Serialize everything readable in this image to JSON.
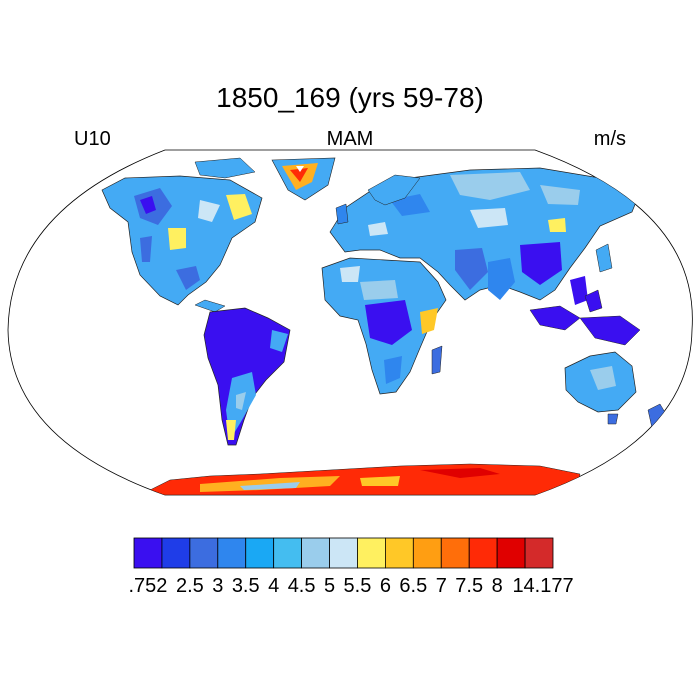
{
  "title": "1850_169 (yrs 59-78)",
  "variable": "U10",
  "season": "MAM",
  "units": "m/s",
  "colorbar": {
    "labels": [
      ".752",
      "2.5",
      "3",
      "3.5",
      "4",
      "4.5",
      "5",
      "5.5",
      "6",
      "6.5",
      "7",
      "7.5",
      "8",
      "14.177"
    ],
    "colors": [
      "#3a0ff0",
      "#1f3de8",
      "#3c6de0",
      "#2f86ee",
      "#1aa8f4",
      "#44bdf0",
      "#9acdec",
      "#cce6f6",
      "#fff060",
      "#ffc827",
      "#ff9e12",
      "#ff6e0a",
      "#ff2a06",
      "#e00000",
      "#d42a2a"
    ]
  },
  "map": {
    "projection": "Robinson",
    "land_base_color": "#44aaf4",
    "ocean_color": "#ffffff"
  }
}
